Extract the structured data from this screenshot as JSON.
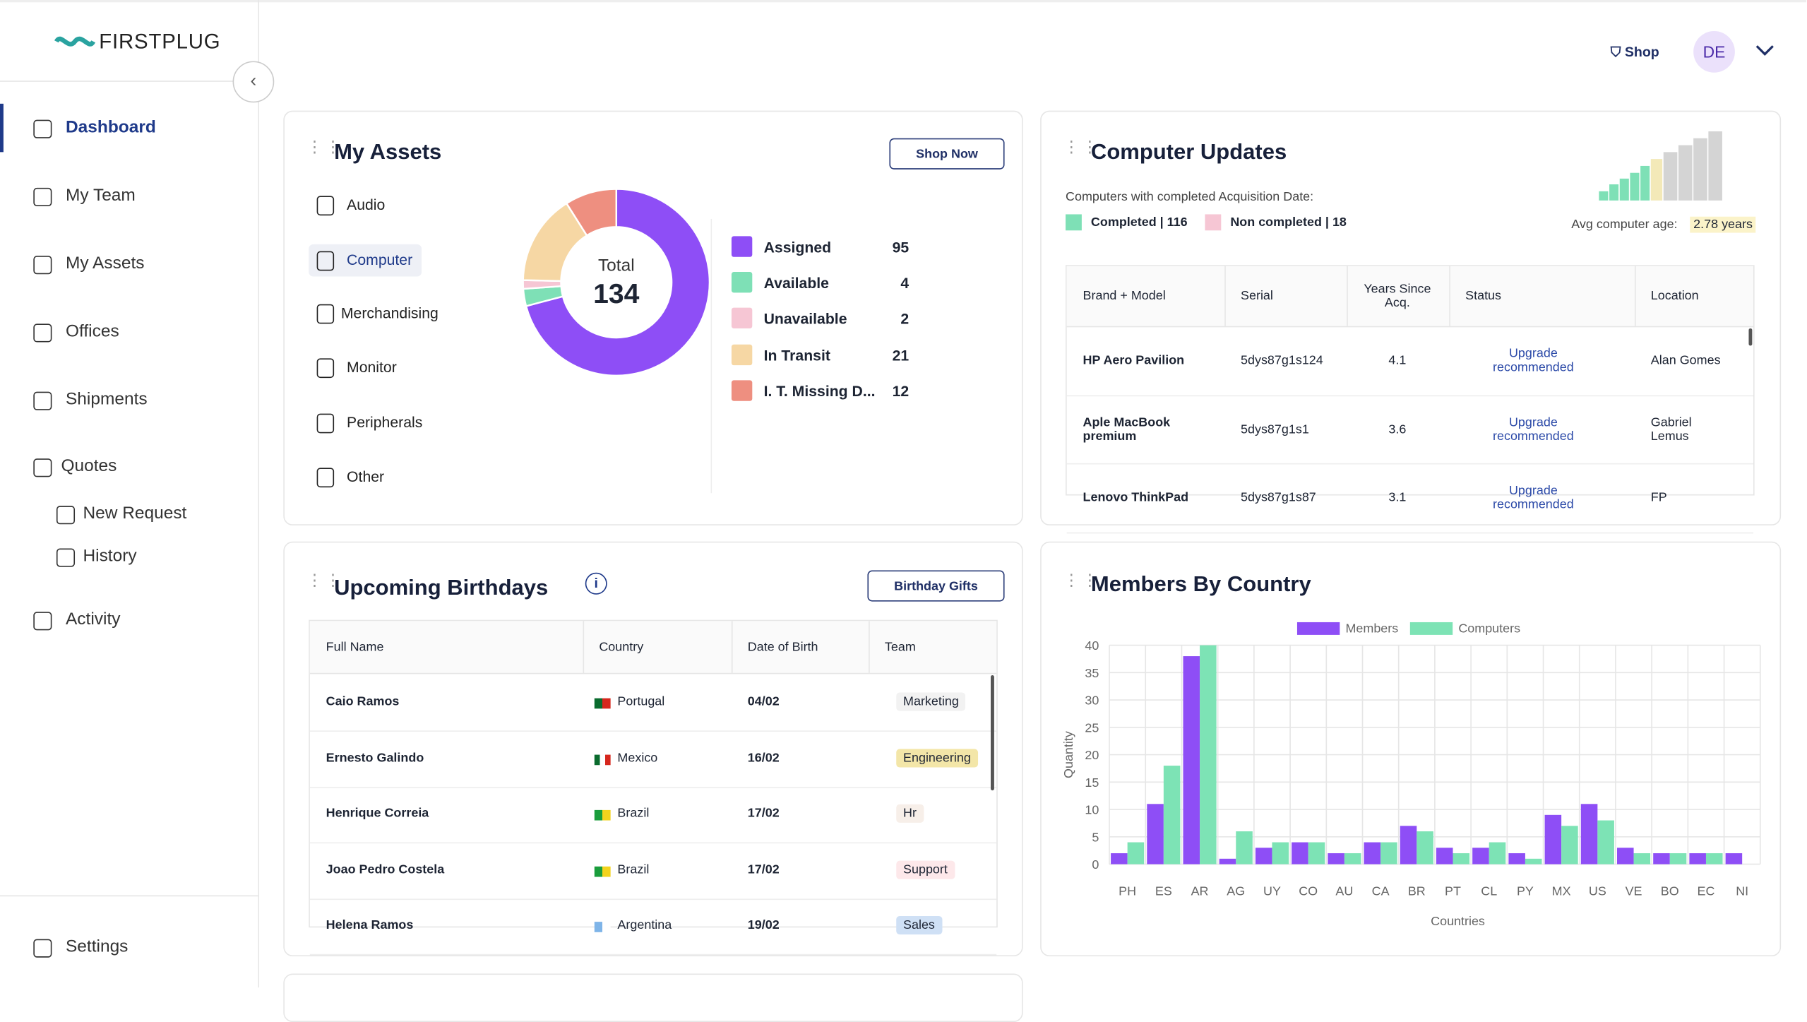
{
  "brand": "FIRSTPLUG",
  "nav": [
    "Dashboard",
    "My Team",
    "My Assets",
    "Offices",
    "Shipments",
    "Quotes",
    "New Request",
    "History",
    "Activity",
    "Settings"
  ],
  "header": {
    "shop": "Shop",
    "avatar": "DE"
  },
  "assets": {
    "title": "My Assets",
    "button": "Shop Now",
    "categories": [
      "Audio",
      "Computer",
      "Merchandising",
      "Monitor",
      "Peripherals",
      "Other"
    ],
    "total_label": "Total",
    "total": 134
  },
  "updates": {
    "title": "Computer Updates",
    "subtitle": "Computers with completed Acquisition Date:",
    "legend": [
      "Completed | 116",
      "Non completed | 18"
    ],
    "avg_label": "Avg computer age:",
    "avg_value": "2.78 years",
    "table": {
      "columns": [
        "Brand + Model",
        "Serial",
        "Years Since Acq.",
        "Status",
        "Location"
      ],
      "rows": [
        [
          "HP Aero Pavilion",
          "5dys87g1s124",
          "4.1",
          "Upgrade recommended",
          "Alan Gomes"
        ],
        [
          "Aple MacBook premium",
          "5dys87g1s1",
          "3.6",
          "Upgrade recommended",
          "Gabriel Lemus"
        ],
        [
          "Lenovo ThinkPad",
          "5dys87g1s87",
          "3.1",
          "Upgrade recommended",
          "FP"
        ]
      ]
    }
  },
  "birthdays": {
    "title": "Upcoming Birthdays",
    "button": "Birthday Gifts",
    "table": {
      "columns": [
        "Full Name",
        "Country",
        "Date of Birth",
        "Team"
      ],
      "rows": [
        [
          "Caio Ramos",
          "Portugal",
          "04/02",
          "Marketing"
        ],
        [
          "Ernesto Galindo",
          "Mexico",
          "16/02",
          "Engineering"
        ],
        [
          "Henrique Correia",
          "Brazil",
          "17/02",
          "Hr"
        ],
        [
          "Joao Pedro Costela",
          "Brazil",
          "17/02",
          "Support"
        ],
        [
          "Helena Ramos",
          "Argentina",
          "19/02",
          "Sales"
        ]
      ]
    }
  },
  "chart_data": [
    {
      "type": "pie",
      "categories": [
        "Assigned",
        "Available",
        "Unavailable",
        "In Transit",
        "I. T. Missing D..."
      ],
      "values": [
        95,
        4,
        2,
        21,
        12
      ],
      "colors": [
        "#8e4ef6",
        "#7ee0b6",
        "#f6c6d4",
        "#f6d7a4",
        "#ee8f80"
      ]
    },
    {
      "type": "bar",
      "title": "Members By Country",
      "x_label": "Countries",
      "y_label": "Quantity",
      "categories": [
        "PH",
        "ES",
        "AR",
        "AG",
        "UY",
        "CO",
        "AU",
        "CA",
        "BR",
        "PT",
        "CL",
        "PY",
        "MX",
        "US",
        "VE",
        "BO",
        "EC",
        "NI"
      ],
      "series": [
        {
          "name": "Members",
          "color": "#8e4ef6",
          "values": [
            2,
            11,
            38,
            1,
            3,
            4,
            2,
            4,
            7,
            3,
            3,
            2,
            9,
            11,
            3,
            2,
            2,
            2
          ]
        },
        {
          "name": "Computers",
          "color": "#7de3b5",
          "values": [
            4,
            18,
            40,
            6,
            4,
            4,
            2,
            4,
            6,
            2,
            4,
            1,
            7,
            8,
            2,
            2,
            2,
            0
          ]
        }
      ],
      "ylim": [
        0,
        40
      ],
      "yticks": [
        0,
        5,
        10,
        15,
        20,
        25,
        30,
        35,
        40
      ],
      "grid": true
    }
  ]
}
